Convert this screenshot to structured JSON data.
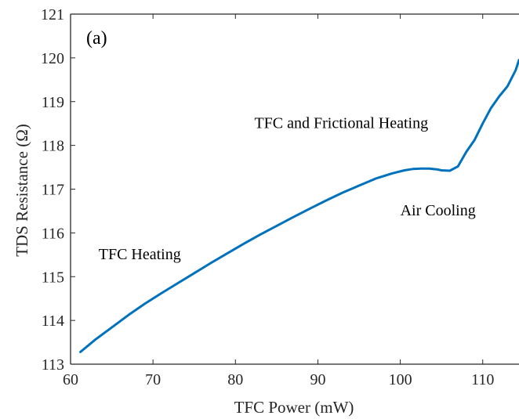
{
  "chart_data": {
    "type": "line",
    "title": "",
    "panel_label": "(a)",
    "xlabel": "TFC Power (mW)",
    "ylabel": "TDS Resistance (Ω)",
    "xlim": [
      60,
      114.4
    ],
    "ylim": [
      113,
      121
    ],
    "xticks": [
      60,
      70,
      80,
      90,
      100,
      110
    ],
    "yticks": [
      113,
      114,
      115,
      116,
      117,
      118,
      119,
      120,
      121
    ],
    "grid": false,
    "series": [
      {
        "color": "#0072BD",
        "x": [
          61.2,
          63,
          65,
          67,
          69,
          71,
          73,
          75,
          77,
          79,
          81,
          83,
          85,
          87,
          89,
          91,
          93,
          95,
          97,
          99,
          100.5,
          101.5,
          102.5,
          103.5,
          104.5,
          105,
          106,
          107,
          108,
          109,
          110,
          111,
          112,
          113,
          114,
          114.4
        ],
        "y": [
          113.28,
          113.56,
          113.84,
          114.12,
          114.38,
          114.62,
          114.85,
          115.08,
          115.31,
          115.53,
          115.75,
          115.96,
          116.16,
          116.36,
          116.55,
          116.74,
          116.92,
          117.08,
          117.24,
          117.36,
          117.43,
          117.46,
          117.47,
          117.47,
          117.45,
          117.43,
          117.42,
          117.52,
          117.85,
          118.12,
          118.5,
          118.85,
          119.12,
          119.35,
          119.72,
          119.95
        ]
      }
    ],
    "annotations": [
      {
        "text": "TFC and Frictional Heating",
        "x": 82.3,
        "y": 118.4
      },
      {
        "text": "Air Cooling",
        "x": 100,
        "y": 116.4
      },
      {
        "text": "TFC Heating",
        "x": 63.4,
        "y": 115.4
      }
    ]
  }
}
